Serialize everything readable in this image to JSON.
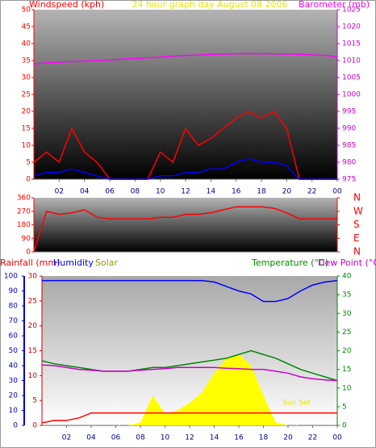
{
  "chart_data": [
    {
      "type": "line",
      "title": "24 hour graph day   August 08 2006",
      "title_color": "#e6e600",
      "x": [
        0,
        1,
        2,
        3,
        4,
        5,
        6,
        7,
        8,
        9,
        10,
        11,
        12,
        13,
        14,
        15,
        16,
        17,
        18,
        19,
        20,
        21,
        22,
        23,
        24
      ],
      "xlim": [
        0,
        24
      ],
      "xticks": [
        {
          "value": 2,
          "label": "02"
        },
        {
          "value": 4,
          "label": "04"
        },
        {
          "value": 6,
          "label": "06"
        },
        {
          "value": 8,
          "label": "08"
        },
        10,
        12,
        14,
        16,
        18,
        20,
        22,
        {
          "value": 24,
          "label": "00"
        }
      ],
      "ylim": [
        0,
        50
      ],
      "yticks": [
        0,
        5,
        10,
        15,
        20,
        25,
        30,
        35,
        40,
        45,
        50
      ],
      "ytick_color": "#ff0000",
      "y2lim": [
        975,
        1025
      ],
      "y2ticks": [
        975,
        980,
        985,
        990,
        995,
        1000,
        1005,
        1010,
        1015,
        1020,
        1025
      ],
      "y2tick_color": "#cc00cc",
      "background": [
        "#b4b4b4",
        "#000000"
      ],
      "series": [
        {
          "name": "Windspeed (kph)",
          "color": "#ff0000",
          "values": [
            5,
            8,
            5,
            15,
            8,
            5,
            0,
            0,
            0,
            0,
            8,
            5,
            15,
            10,
            12,
            15,
            18,
            20,
            18,
            20,
            15,
            0,
            0,
            0,
            0
          ]
        },
        {
          "color": "#0000ff",
          "values": [
            1,
            2,
            2,
            3,
            2,
            1,
            0,
            0,
            0,
            0,
            1,
            1,
            2,
            2,
            3,
            3,
            5,
            6,
            5,
            5,
            4,
            0,
            0,
            0,
            0
          ]
        },
        {
          "name": "Barometer (mb)",
          "color": "#ff00ff",
          "axis": "y2",
          "values": [
            1009,
            1009.3,
            1009.5,
            1009.7,
            1009.8,
            1010,
            1010.2,
            1010.4,
            1010.6,
            1010.8,
            1011,
            1011.3,
            1011.5,
            1011.6,
            1011.8,
            1011.9,
            1012,
            1012.1,
            1012,
            1012,
            1011.9,
            1011.8,
            1011.7,
            1011.5,
            1011.2
          ]
        }
      ]
    },
    {
      "type": "line",
      "x": [
        0,
        1,
        2,
        3,
        4,
        5,
        6,
        7,
        8,
        9,
        10,
        11,
        12,
        13,
        14,
        15,
        16,
        17,
        18,
        19,
        20,
        21,
        22,
        23,
        24
      ],
      "xlim": [
        0,
        24
      ],
      "ylim": [
        0,
        360
      ],
      "yticks": [
        0,
        90,
        180,
        270,
        360
      ],
      "ytick_color": "#ff0000",
      "y2lim": [
        0,
        360
      ],
      "y2ticks": [
        {
          "value": 360,
          "label": "N"
        },
        {
          "value": 270,
          "label": "W"
        },
        {
          "value": 180,
          "label": "S"
        },
        {
          "value": 90,
          "label": "E"
        },
        {
          "value": 0,
          "label": "N"
        }
      ],
      "y2tick_color": "#ff0000",
      "background": [
        "#b4b4b4",
        "#000000"
      ],
      "series": [
        {
          "color": "#ff0000",
          "values": [
            0,
            270,
            250,
            260,
            280,
            230,
            220,
            220,
            220,
            220,
            230,
            230,
            250,
            250,
            260,
            280,
            300,
            300,
            300,
            290,
            260,
            220,
            220,
            220,
            220
          ]
        }
      ]
    },
    {
      "type": "line",
      "x": [
        0,
        1,
        2,
        3,
        4,
        5,
        6,
        7,
        8,
        9,
        10,
        11,
        12,
        13,
        14,
        15,
        16,
        17,
        18,
        19,
        20,
        21,
        22,
        23,
        24
      ],
      "xlim": [
        0,
        24
      ],
      "xticks": [
        {
          "value": 2,
          "label": "02"
        },
        {
          "value": 4,
          "label": "04"
        },
        {
          "value": 6,
          "label": "06"
        },
        {
          "value": 8,
          "label": "08"
        },
        10,
        12,
        14,
        16,
        18,
        20,
        22,
        {
          "value": 24,
          "label": "00"
        }
      ],
      "ylim": [
        0,
        100
      ],
      "yticks": [
        0,
        10,
        20,
        30,
        40,
        50,
        60,
        70,
        80,
        90,
        100
      ],
      "ytick_color": "#0000cc",
      "y2lim": [
        0,
        40
      ],
      "y2ticks": [
        0,
        5,
        10,
        15,
        20,
        25,
        30,
        35,
        40
      ],
      "y2tick_color": "#008800",
      "y3lim": [
        0,
        30
      ],
      "y3ticks": [
        0,
        5,
        10,
        15,
        20,
        25,
        30
      ],
      "y3tick_color": "#cc0000",
      "background": [
        "#a8a8a8",
        "#ffffff"
      ],
      "markers": [
        6.3,
        20.7
      ],
      "annotations": [
        {
          "text": "Sun Set",
          "x": 20.7,
          "y": 3.6,
          "axis": "y3",
          "color": "#e6e600"
        }
      ],
      "series": [
        {
          "name": "Solar",
          "color": "#ffff00",
          "text_color": "#999900",
          "style": "area",
          "values": [
            0,
            0,
            0,
            0,
            0,
            0,
            0,
            0,
            2,
            20,
            8,
            10,
            15,
            22,
            35,
            45,
            48,
            40,
            20,
            2,
            0,
            0,
            0,
            0,
            0
          ]
        },
        {
          "name": "Rainfall (mm)",
          "color": "#ff0000",
          "axis": "y3",
          "values": [
            0.5,
            1,
            1,
            1.5,
            2.5,
            2.5,
            2.5,
            2.5,
            2.5,
            2.5,
            2.5,
            2.5,
            2.5,
            2.5,
            2.5,
            2.5,
            2.5,
            2.5,
            2.5,
            2.5,
            2.5,
            2.5,
            2.5,
            2.5,
            2.5
          ]
        },
        {
          "name": "Humidity",
          "color": "#0000ff",
          "values": [
            97,
            97,
            97,
            97,
            97,
            97,
            97,
            97,
            97,
            97,
            97,
            97,
            97,
            97,
            96,
            93,
            90,
            88,
            83,
            83,
            85,
            90,
            94,
            96,
            97
          ]
        },
        {
          "name": "Temperature (°C)",
          "color": "#008800",
          "axis": "y2",
          "values": [
            17.3,
            16.5,
            16,
            15.5,
            15,
            14.5,
            14.5,
            14.5,
            15,
            15.5,
            15.5,
            16,
            16.5,
            17,
            17.5,
            18,
            19,
            20,
            19,
            18,
            16.5,
            15,
            14,
            13,
            12
          ]
        },
        {
          "name": "Dew Point (°C)",
          "color": "#cc00cc",
          "axis": "y2",
          "values": [
            16.2,
            16,
            15.5,
            15,
            14.8,
            14.5,
            14.5,
            14.5,
            14.8,
            15,
            15.2,
            15.5,
            15.5,
            15.5,
            15.5,
            15.3,
            15.2,
            15,
            15,
            14.5,
            14,
            13,
            12.5,
            12.2,
            12
          ]
        }
      ]
    }
  ]
}
